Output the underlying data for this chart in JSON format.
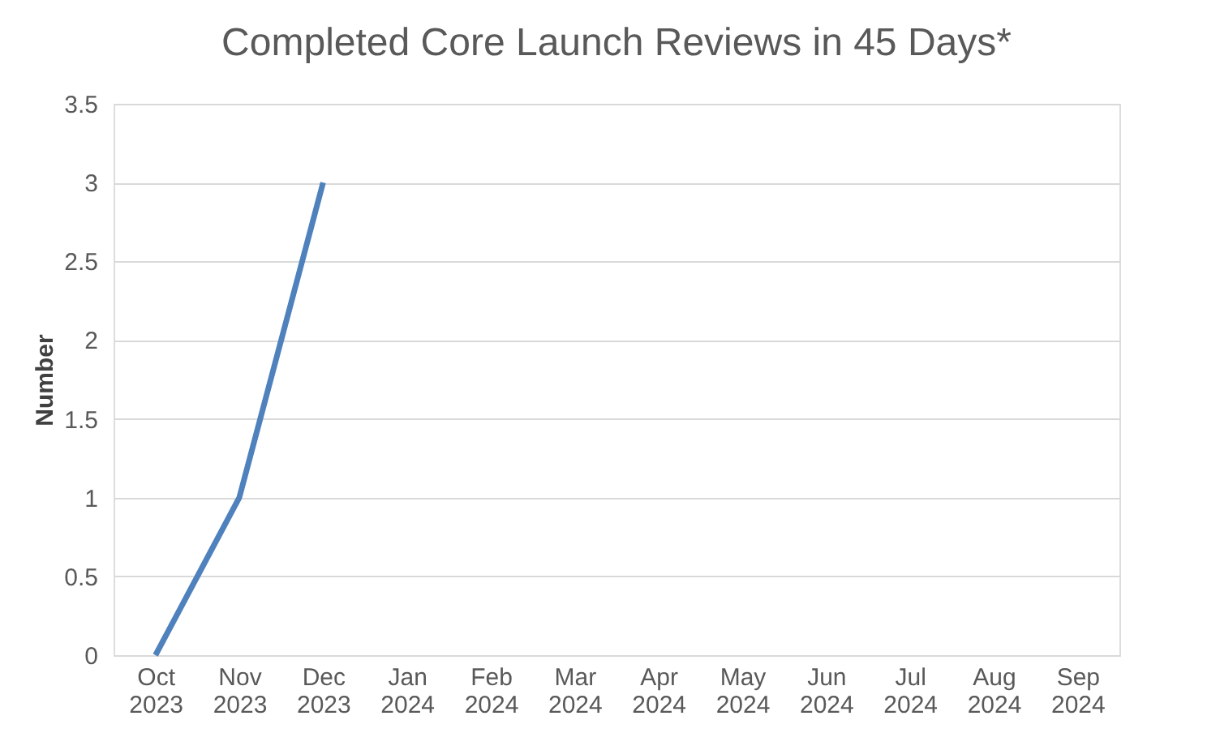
{
  "chart_data": {
    "type": "line",
    "title": "Completed Core Launch Reviews in 45 Days*",
    "ylabel": "Number",
    "categories": [
      "Oct 2023",
      "Nov 2023",
      "Dec 2023",
      "Jan 2024",
      "Feb 2024",
      "Mar 2024",
      "Apr 2024",
      "May 2024",
      "Jun 2024",
      "Jul 2024",
      "Aug 2024",
      "Sep 2024"
    ],
    "series": [
      {
        "color": "#4f81bd",
        "values": [
          0,
          1,
          3,
          null,
          null,
          null,
          null,
          null,
          null,
          null,
          null,
          null
        ]
      }
    ],
    "ylim": [
      0,
      3.5
    ],
    "yticks": [
      0,
      0.5,
      1,
      1.5,
      2,
      2.5,
      3,
      3.5
    ],
    "grid": "y",
    "legend": false,
    "marker": "none",
    "line_style": "solid"
  }
}
